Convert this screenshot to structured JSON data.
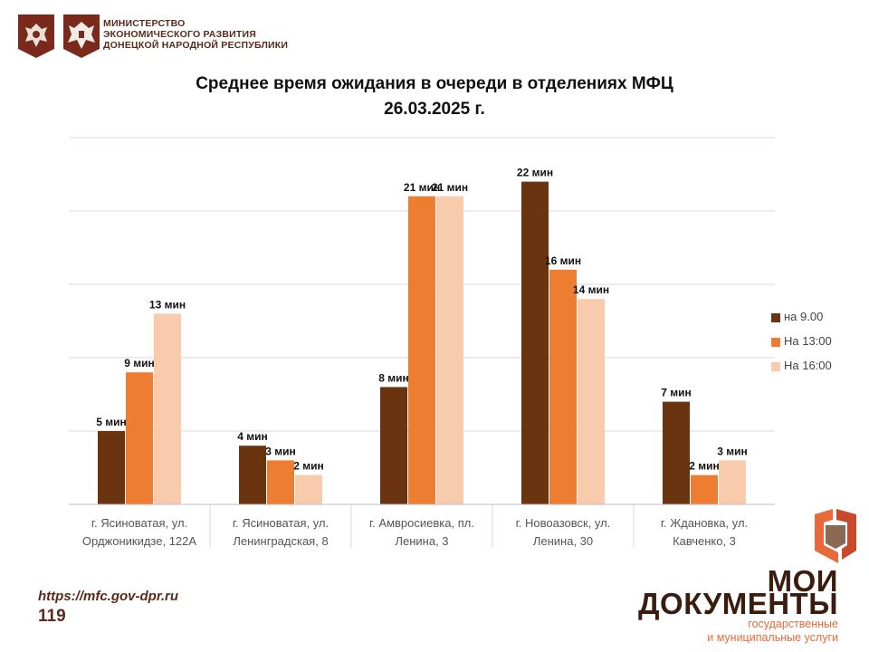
{
  "header": {
    "ministry_lines": [
      "МИНИСТЕРСТВО",
      "ЭКОНОМИЧЕСКОГО РАЗВИТИЯ",
      "ДОНЕЦКОЙ НАРОДНОЙ РЕСПУБЛИКИ"
    ]
  },
  "chart_data": {
    "type": "bar",
    "title": "Среднее время ожидания в очереди в отделениях МФЦ",
    "subtitle": "26.03.2025   г.",
    "categories": [
      [
        "г. Ясиноватая, ул.",
        "Орджоникидзе, 122А"
      ],
      [
        "г. Ясиноватая, ул.",
        "Ленинградская, 8"
      ],
      [
        "г. Амвросиевка, пл.",
        "Ленина, 3"
      ],
      [
        "г. Новоазовск, ул.",
        "Ленина, 30"
      ],
      [
        "г. Ждановка, ул.",
        "Кавченко, 3"
      ]
    ],
    "series": [
      {
        "name": "на 9.00",
        "color": "#6b3410",
        "values": [
          5,
          4,
          8,
          22,
          7
        ]
      },
      {
        "name": "На 13:00",
        "color": "#ed7d31",
        "values": [
          9,
          3,
          21,
          16,
          2
        ]
      },
      {
        "name": "На 16:00",
        "color": "#f8cbad",
        "values": [
          13,
          2,
          21,
          14,
          3
        ]
      }
    ],
    "value_suffix": " мин",
    "ylim": [
      0,
      25
    ],
    "grid": true,
    "legend": "right"
  },
  "footer": {
    "url": "https://mfc.gov-dpr.ru",
    "phone": "119"
  },
  "brand": {
    "word1": "МОИ",
    "word2": "ДОКУМЕНТЫ",
    "sub1": "государственные",
    "sub2": "и муниципальные услуги"
  }
}
